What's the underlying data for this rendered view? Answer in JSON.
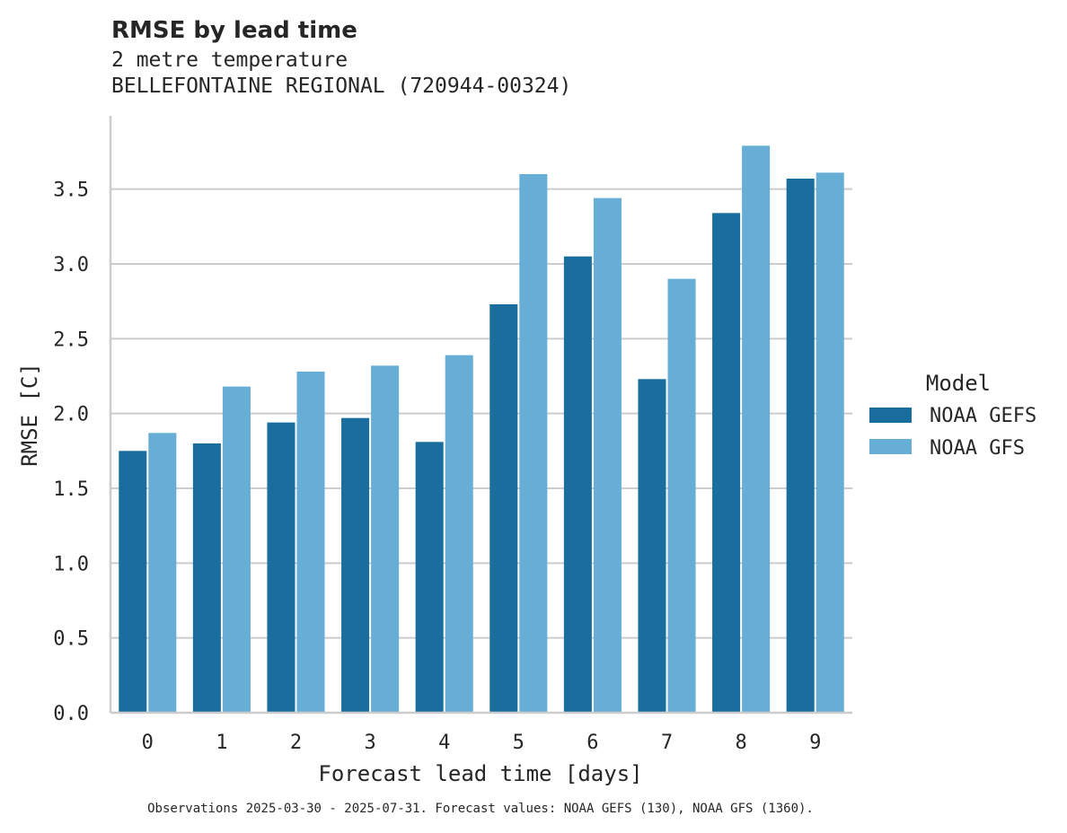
{
  "chart_data": {
    "type": "bar",
    "title": "RMSE by lead time",
    "subtitle_lines": [
      "2 metre temperature",
      "BELLEFONTAINE REGIONAL (720944-00324)"
    ],
    "xlabel": "Forecast lead time [days]",
    "ylabel": "RMSE [C]",
    "categories": [
      "0",
      "1",
      "2",
      "3",
      "4",
      "5",
      "6",
      "7",
      "8",
      "9"
    ],
    "series": [
      {
        "name": "NOAA GEFS",
        "color": "#1a6e9e",
        "values": [
          1.75,
          1.8,
          1.94,
          1.97,
          1.81,
          2.73,
          3.05,
          2.23,
          3.34,
          3.57
        ]
      },
      {
        "name": "NOAA GFS",
        "color": "#67aed7",
        "values": [
          1.87,
          2.18,
          2.28,
          2.32,
          2.39,
          3.6,
          3.44,
          2.9,
          3.79,
          3.61
        ]
      }
    ],
    "ylim": [
      0,
      3.99
    ],
    "yticks": [
      "0.0",
      "0.5",
      "1.0",
      "1.5",
      "2.0",
      "2.5",
      "3.0",
      "3.5"
    ],
    "grid": "horizontal",
    "legend": {
      "title": "Model",
      "placement": "right"
    },
    "footnote": "Observations 2025-03-30 - 2025-07-31. Forecast values: NOAA GEFS (130), NOAA GFS (1360)."
  }
}
